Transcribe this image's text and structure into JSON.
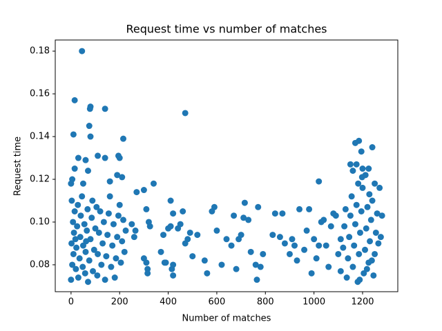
{
  "chart_data": {
    "type": "scatter",
    "title": "Request time vs number of matches",
    "x_label": "Number of matches",
    "y_label": "Request time",
    "xlim": [
      -65,
      1345
    ],
    "ylim": [
      0.0674,
      0.1852
    ],
    "xticks": [
      0,
      200,
      400,
      600,
      800,
      1000,
      1200
    ],
    "yticks": [
      0.08,
      {
        "value": 0.1,
        "label": "0.10"
      },
      0.12,
      0.14,
      0.16,
      0.18
    ],
    "grid": false,
    "series": [
      {
        "color": "#1f77b4",
        "x": [
          45,
          15,
          80,
          78,
          140,
          10,
          75,
          80,
          470,
          215,
          195,
          200,
          140,
          110,
          60,
          30,
          15,
          70,
          5,
          0,
          50,
          160,
          190,
          210,
          270,
          300,
          340,
          1020,
          1185,
          1170,
          1195,
          1240,
          1150,
          1175,
          1160,
          1200,
          1225,
          1270,
          1250,
          250,
          260,
          265,
          300,
          310,
          315,
          315,
          310,
          320,
          325,
          370,
          380,
          385,
          390,
          400,
          410,
          415,
          420,
          420,
          410,
          420,
          440,
          450,
          460,
          470,
          480,
          490,
          500,
          520,
          550,
          560,
          580,
          590,
          600,
          620,
          640,
          660,
          670,
          680,
          690,
          700,
          710,
          715,
          730,
          740,
          760,
          765,
          770,
          780,
          790,
          830,
          840,
          860,
          870,
          880,
          900,
          910,
          920,
          930,
          940,
          960,
          970,
          980,
          990,
          1000,
          1010,
          1020,
          1030,
          1040,
          1050,
          1060,
          1070,
          1080,
          1090,
          1100,
          1110,
          0,
          5,
          2,
          8,
          3,
          10,
          12,
          15,
          20,
          22,
          25,
          28,
          30,
          35,
          38,
          40,
          45,
          48,
          50,
          55,
          58,
          60,
          65,
          68,
          70,
          75,
          80,
          85,
          88,
          90,
          95,
          100,
          105,
          108,
          110,
          115,
          120,
          125,
          130,
          135,
          140,
          145,
          150,
          155,
          160,
          165,
          170,
          175,
          180,
          185,
          190,
          195,
          200,
          205,
          210,
          215,
          220,
          225,
          18,
          62,
          1110,
          1120,
          1125,
          1130,
          1135,
          1140,
          1145,
          1150,
          1155,
          1160,
          1165,
          1170,
          1175,
          1180,
          1185,
          1190,
          1195,
          1200,
          1205,
          1210,
          1215,
          1220,
          1225,
          1230,
          1235,
          1240,
          1245,
          1250,
          1255,
          1260,
          1265,
          1280,
          1275,
          1182,
          1198,
          1212,
          1228,
          1188,
          1218,
          1238
        ],
        "y": [
          0.18,
          0.157,
          0.154,
          0.153,
          0.153,
          0.141,
          0.145,
          0.14,
          0.151,
          0.139,
          0.131,
          0.13,
          0.13,
          0.131,
          0.129,
          0.13,
          0.125,
          0.124,
          0.12,
          0.118,
          0.118,
          0.119,
          0.122,
          0.121,
          0.114,
          0.115,
          0.118,
          0.119,
          0.138,
          0.137,
          0.133,
          0.135,
          0.127,
          0.127,
          0.124,
          0.125,
          0.125,
          0.116,
          0.118,
          0.099,
          0.093,
          0.096,
          0.083,
          0.081,
          0.078,
          0.076,
          0.106,
          0.1,
          0.098,
          0.086,
          0.094,
          0.081,
          0.081,
          0.097,
          0.098,
          0.078,
          0.075,
          0.08,
          0.11,
          0.104,
          0.097,
          0.099,
          0.105,
          0.09,
          0.092,
          0.095,
          0.084,
          0.094,
          0.082,
          0.076,
          0.105,
          0.107,
          0.096,
          0.08,
          0.092,
          0.089,
          0.103,
          0.078,
          0.092,
          0.094,
          0.102,
          0.109,
          0.101,
          0.086,
          0.08,
          0.073,
          0.107,
          0.079,
          0.085,
          0.094,
          0.104,
          0.093,
          0.104,
          0.09,
          0.085,
          0.092,
          0.089,
          0.082,
          0.106,
          0.087,
          0.096,
          0.106,
          0.076,
          0.092,
          0.083,
          0.089,
          0.1,
          0.101,
          0.089,
          0.079,
          0.098,
          0.104,
          0.103,
          0.085,
          0.092,
          0.073,
          0.08,
          0.09,
          0.1,
          0.11,
          0.085,
          0.095,
          0.105,
          0.078,
          0.088,
          0.098,
          0.108,
          0.074,
          0.083,
          0.093,
          0.103,
          0.112,
          0.079,
          0.089,
          0.099,
          0.076,
          0.086,
          0.096,
          0.106,
          0.072,
          0.082,
          0.092,
          0.102,
          0.11,
          0.077,
          0.087,
          0.097,
          0.107,
          0.075,
          0.085,
          0.095,
          0.105,
          0.08,
          0.09,
          0.1,
          0.073,
          0.084,
          0.094,
          0.104,
          0.112,
          0.079,
          0.089,
          0.099,
          0.074,
          0.083,
          0.093,
          0.103,
          0.108,
          0.081,
          0.091,
          0.101,
          0.086,
          0.096,
          0.092,
          0.091,
          0.077,
          0.088,
          0.098,
          0.106,
          0.074,
          0.083,
          0.093,
          0.103,
          0.112,
          0.079,
          0.089,
          0.099,
          0.108,
          0.072,
          0.085,
          0.095,
          0.105,
          0.116,
          0.076,
          0.087,
          0.097,
          0.107,
          0.081,
          0.091,
          0.101,
          0.11,
          0.075,
          0.085,
          0.095,
          0.104,
          0.09,
          0.103,
          0.093,
          0.118,
          0.121,
          0.122,
          0.113,
          0.073,
          0.078,
          0.082
        ]
      }
    ]
  }
}
